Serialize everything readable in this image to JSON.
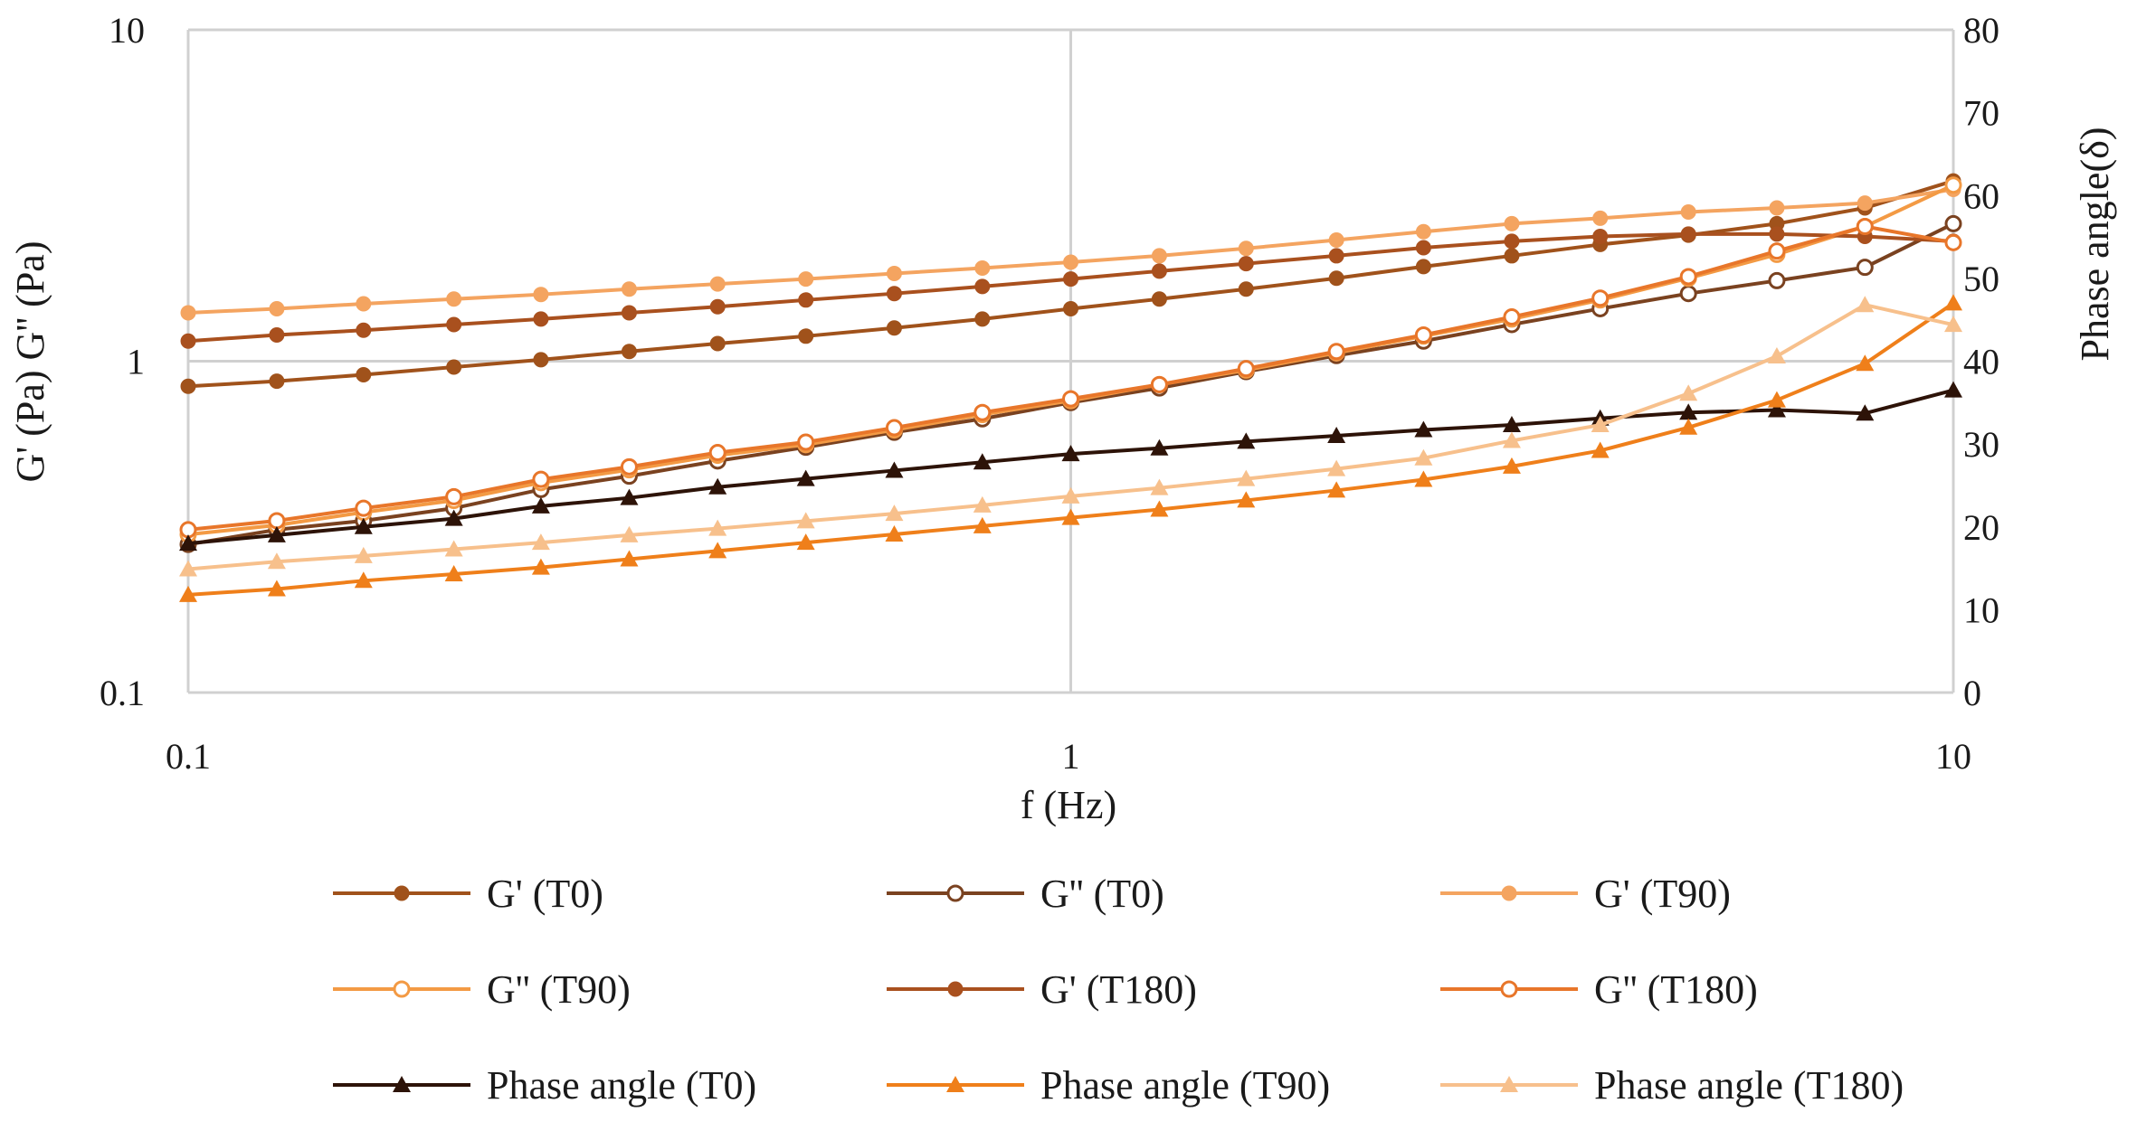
{
  "chart_data": {
    "type": "line",
    "x_scale": "log",
    "xlabel": "f (Hz)",
    "ylabel": "G' (Pa) G'' (Pa)",
    "y2label": "Phase angle(δ)",
    "xlim": [
      0.1,
      10
    ],
    "ylim": [
      0.1,
      10
    ],
    "y2lim": [
      0,
      80
    ],
    "x_ticks": [
      {
        "v": 0.1,
        "label": "0.1"
      },
      {
        "v": 1,
        "label": "1"
      },
      {
        "v": 10,
        "label": "10"
      }
    ],
    "y_ticks": [
      {
        "v": 0.1,
        "label": "0.1"
      },
      {
        "v": 1,
        "label": "1"
      },
      {
        "v": 10,
        "label": "10"
      }
    ],
    "y2_ticks": [
      {
        "v": 0,
        "label": "0"
      },
      {
        "v": 10,
        "label": "10"
      },
      {
        "v": 20,
        "label": "20"
      },
      {
        "v": 30,
        "label": "30"
      },
      {
        "v": 40,
        "label": "40"
      },
      {
        "v": 50,
        "label": "50"
      },
      {
        "v": 60,
        "label": "60"
      },
      {
        "v": 70,
        "label": "70"
      },
      {
        "v": 80,
        "label": "80"
      }
    ],
    "x": [
      0.1,
      0.126,
      0.158,
      0.2,
      0.251,
      0.316,
      0.398,
      0.501,
      0.631,
      0.794,
      1.0,
      1.26,
      1.58,
      2.0,
      2.51,
      3.16,
      3.98,
      5.01,
      6.31,
      7.94,
      10.0
    ],
    "series": [
      {
        "name": "G' (T0)",
        "axis": "left",
        "color": "#A0521B",
        "marker": "circle-filled",
        "values": [
          0.84,
          0.87,
          0.91,
          0.96,
          1.01,
          1.07,
          1.13,
          1.19,
          1.26,
          1.34,
          1.44,
          1.54,
          1.65,
          1.78,
          1.93,
          2.08,
          2.25,
          2.4,
          2.6,
          2.9,
          3.5
        ]
      },
      {
        "name": "G'' (T0)",
        "axis": "left",
        "color": "#7A4220",
        "marker": "circle-open",
        "values": [
          0.28,
          0.31,
          0.33,
          0.36,
          0.41,
          0.45,
          0.5,
          0.55,
          0.61,
          0.67,
          0.75,
          0.83,
          0.93,
          1.04,
          1.15,
          1.29,
          1.44,
          1.6,
          1.75,
          1.92,
          2.6
        ]
      },
      {
        "name": "G' (T90)",
        "axis": "left",
        "color": "#F4A460",
        "marker": "circle-filled",
        "values": [
          1.4,
          1.44,
          1.49,
          1.54,
          1.59,
          1.65,
          1.71,
          1.77,
          1.84,
          1.91,
          1.99,
          2.08,
          2.19,
          2.32,
          2.46,
          2.6,
          2.7,
          2.82,
          2.9,
          3.0,
          3.3
        ]
      },
      {
        "name": "G'' (T90)",
        "axis": "left",
        "color": "#F39A44",
        "marker": "circle-open",
        "values": [
          0.3,
          0.32,
          0.35,
          0.38,
          0.43,
          0.47,
          0.52,
          0.56,
          0.62,
          0.69,
          0.76,
          0.85,
          0.94,
          1.06,
          1.19,
          1.34,
          1.53,
          1.78,
          2.1,
          2.55,
          3.4
        ]
      },
      {
        "name": "G' (T180)",
        "axis": "left",
        "color": "#A9501E",
        "marker": "circle-filled",
        "values": [
          1.15,
          1.2,
          1.24,
          1.29,
          1.34,
          1.4,
          1.46,
          1.53,
          1.6,
          1.68,
          1.77,
          1.87,
          1.97,
          2.08,
          2.2,
          2.3,
          2.38,
          2.42,
          2.42,
          2.38,
          2.3
        ]
      },
      {
        "name": "G'' (T180)",
        "axis": "left",
        "color": "#E8762A",
        "marker": "circle-open",
        "values": [
          0.31,
          0.33,
          0.36,
          0.39,
          0.44,
          0.48,
          0.53,
          0.57,
          0.63,
          0.7,
          0.77,
          0.85,
          0.95,
          1.07,
          1.2,
          1.36,
          1.55,
          1.8,
          2.15,
          2.55,
          2.28
        ]
      },
      {
        "name": "Phase angle (T0)",
        "axis": "right",
        "color": "#2D1308",
        "marker": "triangle",
        "values": [
          18,
          19,
          20,
          21,
          22.5,
          23.5,
          24.8,
          25.8,
          26.8,
          27.8,
          28.8,
          29.5,
          30.3,
          31,
          31.7,
          32.3,
          33.1,
          33.8,
          34.1,
          33.7,
          36.5
        ]
      },
      {
        "name": "Phase angle (T90)",
        "axis": "right",
        "color": "#EF7F1A",
        "marker": "triangle",
        "values": [
          11.8,
          12.5,
          13.5,
          14.3,
          15.1,
          16.1,
          17.1,
          18.1,
          19.1,
          20.1,
          21.1,
          22.1,
          23.2,
          24.4,
          25.7,
          27.3,
          29.2,
          32,
          35.3,
          39.7,
          47
        ]
      },
      {
        "name": "Phase angle (T180)",
        "axis": "right",
        "color": "#F7C08C",
        "marker": "triangle",
        "values": [
          14.9,
          15.8,
          16.5,
          17.3,
          18.1,
          19,
          19.8,
          20.7,
          21.6,
          22.6,
          23.7,
          24.7,
          25.8,
          27,
          28.3,
          30.4,
          32.3,
          36.1,
          40.6,
          46.8,
          44.4
        ]
      }
    ]
  }
}
